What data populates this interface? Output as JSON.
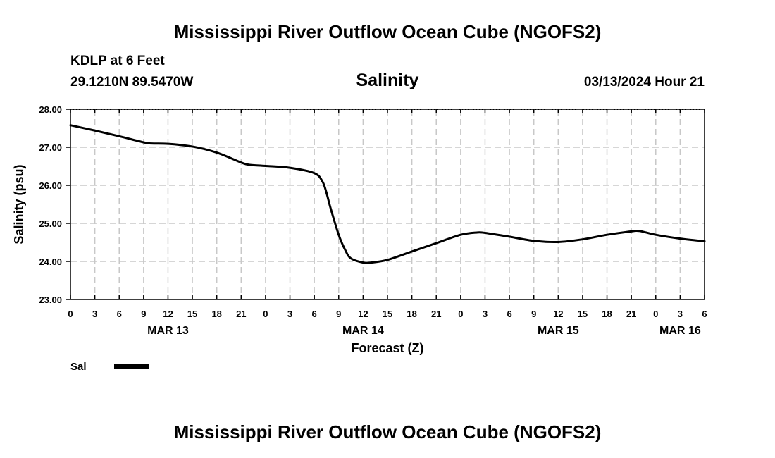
{
  "header": {
    "title": "Mississippi River Outflow Ocean Cube (NGOFS2)",
    "station": "KDLP at 6 Feet",
    "coords": "29.1210N  89.5470W",
    "date": "03/13/2024 Hour 21"
  },
  "footer": {
    "title": "Mississippi River Outflow Ocean Cube (NGOFS2)"
  },
  "chart_data": {
    "type": "line",
    "title": "Salinity",
    "xlabel": "Forecast (Z)",
    "ylabel": "Salinity (psu)",
    "xlim": [
      0,
      78
    ],
    "ylim": [
      23.0,
      28.0
    ],
    "yticks": [
      "23.00",
      "24.00",
      "25.00",
      "26.00",
      "27.00",
      "28.00"
    ],
    "ytick_values": [
      23,
      24,
      25,
      26,
      27,
      28
    ],
    "xticks": [
      {
        "h": 0,
        "label": "0"
      },
      {
        "h": 3,
        "label": "3"
      },
      {
        "h": 6,
        "label": "6"
      },
      {
        "h": 9,
        "label": "9"
      },
      {
        "h": 12,
        "label": "12"
      },
      {
        "h": 15,
        "label": "15"
      },
      {
        "h": 18,
        "label": "18"
      },
      {
        "h": 21,
        "label": "21"
      },
      {
        "h": 24,
        "label": "0"
      },
      {
        "h": 27,
        "label": "3"
      },
      {
        "h": 30,
        "label": "6"
      },
      {
        "h": 33,
        "label": "9"
      },
      {
        "h": 36,
        "label": "12"
      },
      {
        "h": 39,
        "label": "15"
      },
      {
        "h": 42,
        "label": "18"
      },
      {
        "h": 45,
        "label": "21"
      },
      {
        "h": 48,
        "label": "0"
      },
      {
        "h": 51,
        "label": "3"
      },
      {
        "h": 54,
        "label": "6"
      },
      {
        "h": 57,
        "label": "9"
      },
      {
        "h": 60,
        "label": "12"
      },
      {
        "h": 63,
        "label": "15"
      },
      {
        "h": 66,
        "label": "18"
      },
      {
        "h": 69,
        "label": "21"
      },
      {
        "h": 72,
        "label": "0"
      },
      {
        "h": 75,
        "label": "3"
      },
      {
        "h": 78,
        "label": "6"
      }
    ],
    "date_labels": [
      {
        "h": 12,
        "label": "MAR 13"
      },
      {
        "h": 36,
        "label": "MAR 14"
      },
      {
        "h": 60,
        "label": "MAR 15"
      },
      {
        "h": 75,
        "label": "MAR 16"
      }
    ],
    "series": [
      {
        "name": "Sal",
        "color": "#000000",
        "x": [
          0,
          3,
          6,
          9,
          10,
          12,
          15,
          18,
          21,
          22,
          24,
          27,
          30,
          31,
          31.5,
          32,
          33,
          33.8,
          34.5,
          36,
          37,
          39,
          42,
          45,
          48,
          50,
          51,
          54,
          57,
          60,
          63,
          66,
          69,
          70,
          72,
          75,
          78
        ],
        "values": [
          27.58,
          27.44,
          27.29,
          27.13,
          27.1,
          27.09,
          27.02,
          26.86,
          26.6,
          26.54,
          26.51,
          26.46,
          26.32,
          26.1,
          25.8,
          25.4,
          24.7,
          24.3,
          24.08,
          23.97,
          23.97,
          24.04,
          24.26,
          24.48,
          24.7,
          24.76,
          24.75,
          24.65,
          24.54,
          24.51,
          24.58,
          24.7,
          24.79,
          24.8,
          24.7,
          24.6,
          24.53
        ]
      }
    ],
    "grid": true,
    "legend": "bottom-left"
  }
}
